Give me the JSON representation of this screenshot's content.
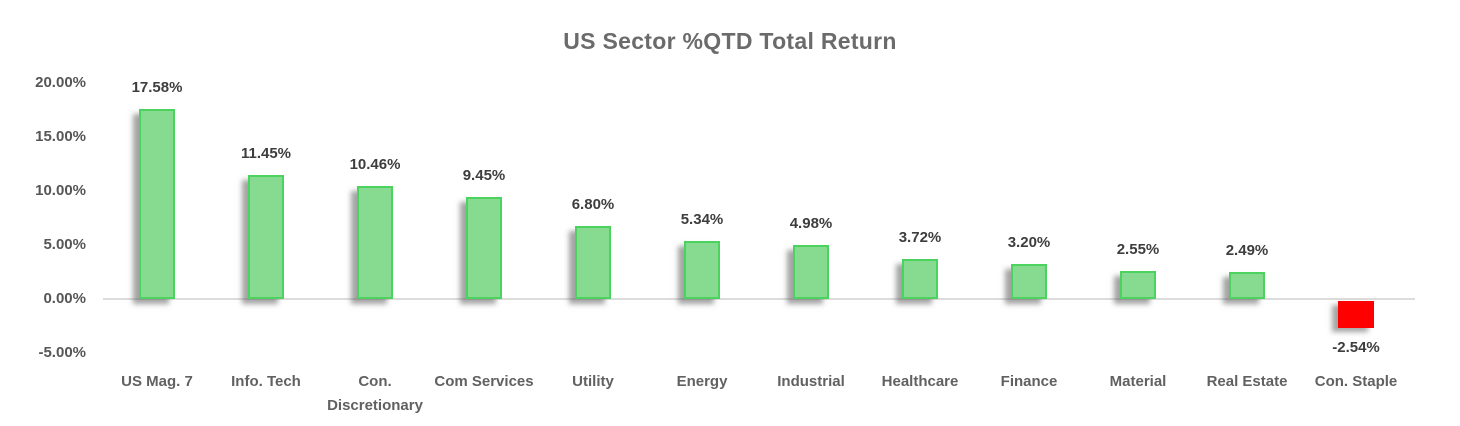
{
  "title": "US Sector %QTD Total Return",
  "chart_data": {
    "type": "bar",
    "title": "US Sector %QTD Total Return",
    "xlabel": "",
    "ylabel": "",
    "categories": [
      "US Mag. 7",
      "Info. Tech",
      "Con. Discretionary",
      "Com Services",
      "Utility",
      "Energy",
      "Industrial",
      "Healthcare",
      "Finance",
      "Material",
      "Real Estate",
      "Con. Staple"
    ],
    "values": [
      17.58,
      11.45,
      10.46,
      9.45,
      6.8,
      5.34,
      4.98,
      3.72,
      3.2,
      2.55,
      2.49,
      -2.54
    ],
    "value_labels": [
      "17.58%",
      "11.45%",
      "10.46%",
      "9.45%",
      "6.80%",
      "5.34%",
      "4.98%",
      "3.72%",
      "3.20%",
      "2.55%",
      "2.49%",
      "-2.54%"
    ],
    "y_ticks": [
      "20.00%",
      "15.00%",
      "10.00%",
      "5.00%",
      "0.00%",
      "-5.00%"
    ],
    "y_tick_values": [
      20,
      15,
      10,
      5,
      0,
      -5
    ],
    "ylim": [
      -5,
      20
    ],
    "grid": "zero-line-only",
    "legend": "none",
    "colors": {
      "positive_fill": "#87db90",
      "positive_border": "#4cd25f",
      "negative_fill": "#fe0000",
      "axis_line": "#dcdcdc",
      "title_text": "#6b6b6b",
      "y_tick_text": "#565656",
      "x_label_text": "#616161",
      "value_label_text": "#3d3d3d"
    }
  }
}
